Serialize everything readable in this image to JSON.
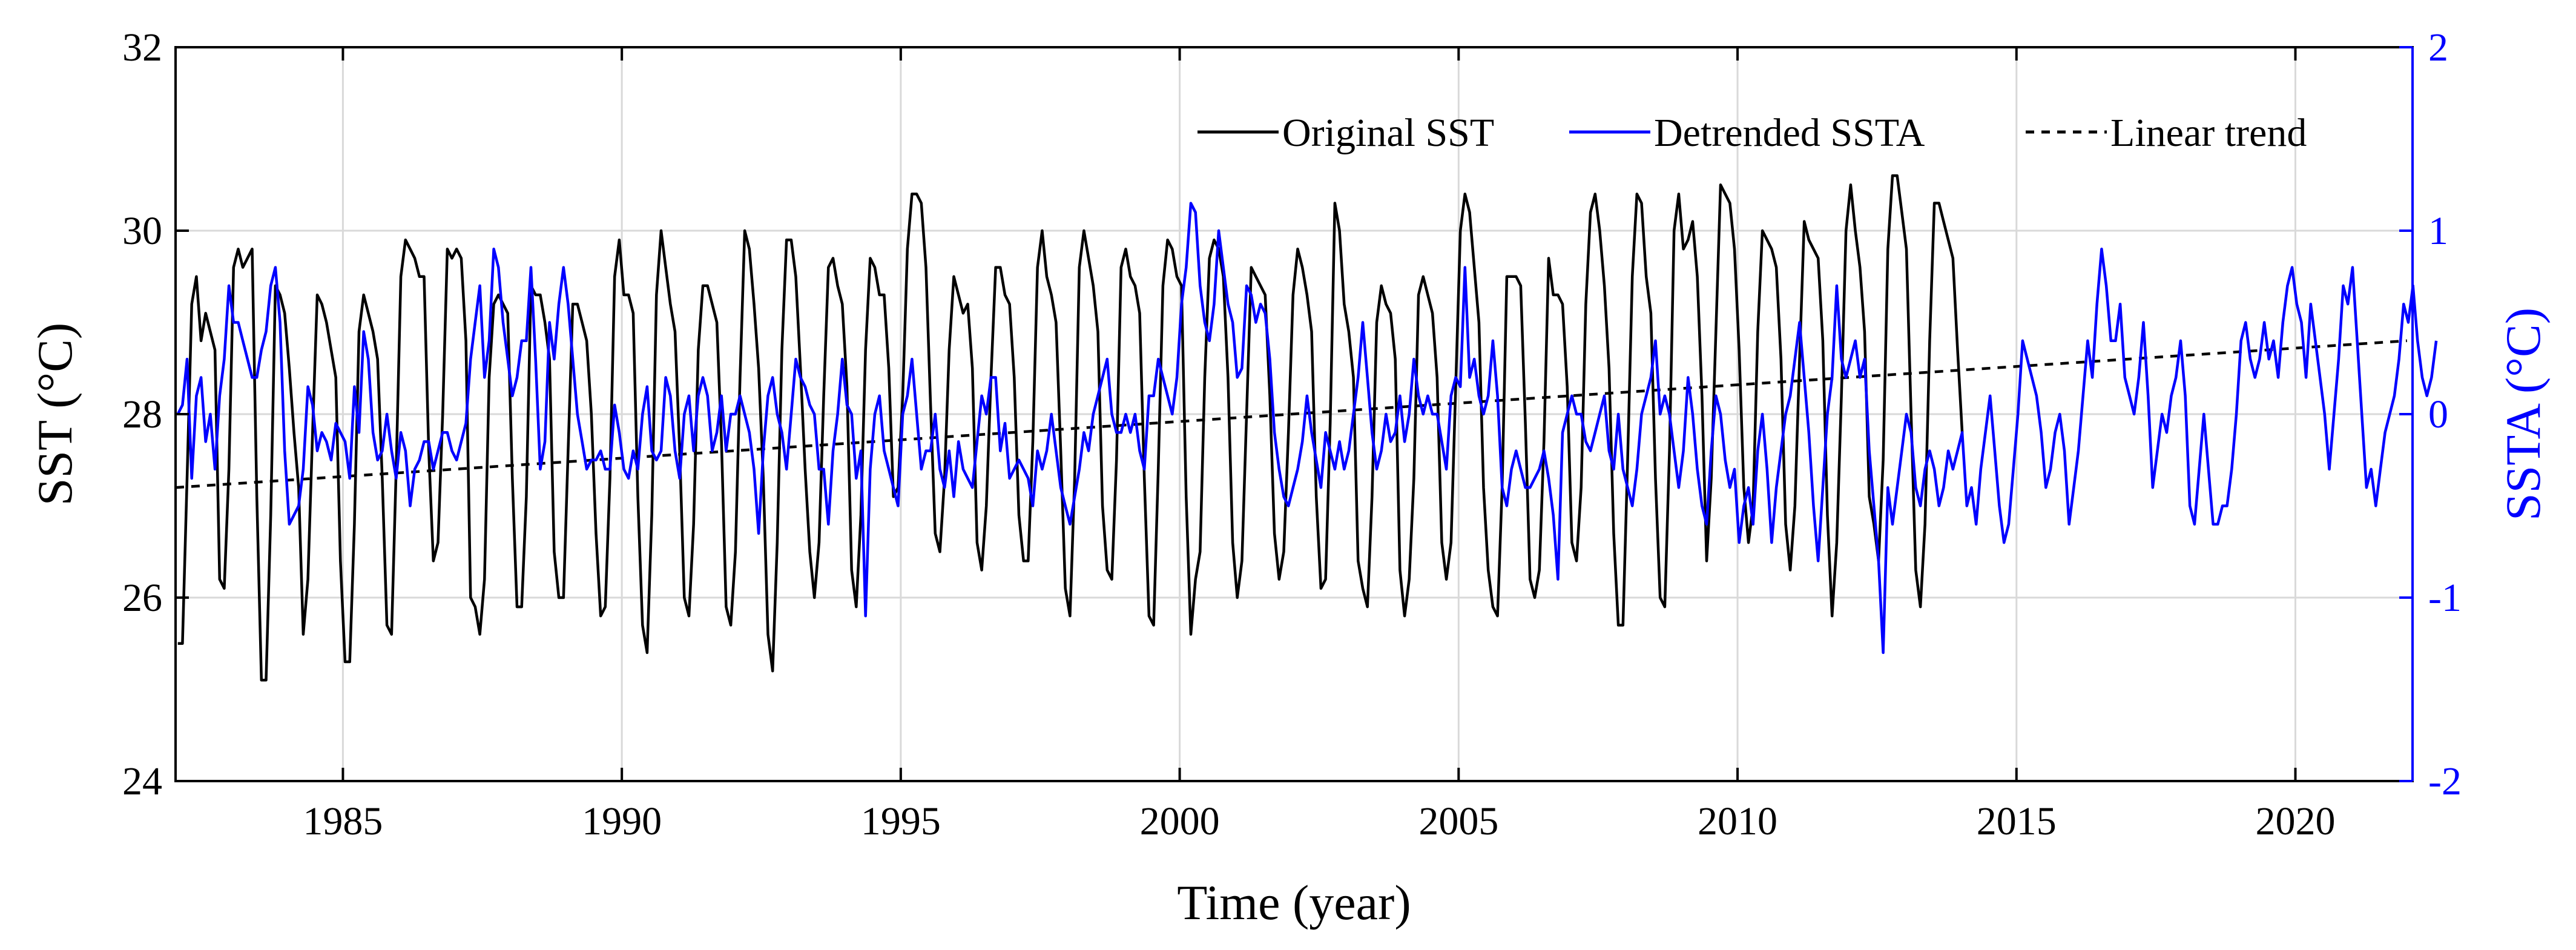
{
  "chart_data": {
    "type": "line",
    "title": "",
    "xlabel": "Time (year)",
    "ylabel_left": "SST (°C)",
    "ylabel_right": "SSTA (°C)",
    "xlim": [
      1982,
      2022.1
    ],
    "ylim_left": [
      24,
      32
    ],
    "ylim_right": [
      -2,
      2
    ],
    "x_ticks": [
      1985,
      1990,
      1995,
      2000,
      2005,
      2010,
      2015,
      2020
    ],
    "x_tick_labels": [
      "1985",
      "1990",
      "1995",
      "2000",
      "2005",
      "2010",
      "2015",
      "2020"
    ],
    "y_left_ticks": [
      24,
      26,
      28,
      30,
      32
    ],
    "y_left_tick_labels": [
      "24",
      "26",
      "28",
      "30",
      "32"
    ],
    "y_right_ticks": [
      -2,
      -1,
      0,
      1,
      2
    ],
    "y_right_tick_labels": [
      "-2",
      "-1",
      "0",
      "1",
      "2"
    ],
    "grid": true,
    "legend_position": "top-right",
    "colors": {
      "sst": "#000000",
      "ssta": "#0000ff",
      "trend": "#000000",
      "right_axis": "#0000ff",
      "grid": "#d9d9d9"
    },
    "series": [
      {
        "name": "Original SST",
        "axis": "left",
        "style": "solid",
        "color": "#000000",
        "start_year": 1982.04,
        "step": 0.0833,
        "values": [
          25.5,
          25.5,
          27.3,
          29.2,
          29.5,
          28.8,
          29.1,
          28.9,
          28.7,
          26.2,
          26.1,
          27.4,
          29.6,
          29.8,
          29.6,
          29.7,
          29.8,
          27.1,
          25.1,
          25.1,
          26.9,
          29.4,
          29.3,
          29.1,
          28.5,
          27.8,
          27.2,
          25.6,
          26.2,
          27.8,
          29.3,
          29.2,
          29.0,
          28.7,
          28.4,
          26.4,
          25.3,
          25.3,
          26.8,
          28.9,
          29.3,
          29.1,
          28.9,
          28.6,
          27.3,
          25.7,
          25.6,
          27.4,
          29.5,
          29.9,
          29.8,
          29.7,
          29.5,
          29.5,
          27.6,
          26.4,
          26.6,
          28.0,
          29.8,
          29.7,
          29.8,
          29.7,
          28.8,
          26.0,
          25.9,
          25.6,
          26.2,
          28.4,
          29.2,
          29.3,
          29.2,
          29.1,
          27.3,
          25.9,
          25.9,
          27.1,
          29.4,
          29.3,
          29.3,
          29.0,
          28.6,
          26.5,
          26.0,
          26.0,
          27.6,
          29.2,
          29.2,
          29.0,
          28.8,
          28.0,
          26.7,
          25.8,
          25.9,
          27.3,
          29.5,
          29.9,
          29.3,
          29.3,
          29.1,
          27.1,
          25.7,
          25.4,
          26.9,
          29.3,
          30.0,
          29.6,
          29.2,
          28.9,
          27.6,
          26.0,
          25.8,
          26.8,
          28.7,
          29.4,
          29.4,
          29.2,
          29.0,
          27.7,
          25.9,
          25.7,
          26.5,
          28.4,
          30.0,
          29.8,
          29.2,
          28.5,
          27.3,
          25.6,
          25.2,
          26.6,
          28.7,
          29.9,
          29.9,
          29.5,
          28.5,
          27.4,
          26.5,
          26.0,
          26.6,
          28.2,
          29.6,
          29.7,
          29.4,
          29.2,
          28.3,
          26.3,
          25.9,
          26.9,
          28.7,
          29.7,
          29.6,
          29.3,
          29.3,
          28.5,
          27.1,
          27.2,
          28.2,
          29.8,
          30.4,
          30.4,
          30.3,
          29.6,
          28.1,
          26.7,
          26.5,
          27.3,
          28.7,
          29.5,
          29.3,
          29.1,
          29.2,
          28.5,
          26.6,
          26.3,
          27.0,
          28.4,
          29.6,
          29.6,
          29.3,
          29.2,
          28.4,
          26.9,
          26.4,
          26.4,
          27.7,
          29.6,
          30.0,
          29.5,
          29.3,
          29.0,
          27.6,
          26.1,
          25.8,
          27.3,
          29.6,
          30.0,
          29.7,
          29.4,
          28.9,
          27.0,
          26.3,
          26.2,
          27.5,
          29.6,
          29.8,
          29.5,
          29.4,
          29.1,
          27.3,
          25.8,
          25.7,
          27.4,
          29.4,
          29.9,
          29.8,
          29.5,
          29.4,
          27.1,
          25.6,
          26.2,
          26.5,
          28.4,
          29.7,
          29.9,
          29.8,
          29.5,
          28.4,
          26.6,
          26.0,
          26.4,
          28.0,
          29.6,
          29.5,
          29.4,
          29.3,
          28.2,
          26.7,
          26.2,
          26.5,
          27.8,
          29.3,
          29.8,
          29.6,
          29.3,
          28.9,
          27.1,
          26.1,
          26.2,
          27.9,
          30.3,
          30.0,
          29.2,
          28.9,
          28.4,
          26.4,
          26.1,
          25.9,
          27.1,
          29.0,
          29.4,
          29.2,
          29.1,
          28.6,
          26.3,
          25.8,
          26.2,
          27.3,
          29.3,
          29.5,
          29.3,
          29.1,
          28.4,
          26.6,
          26.2,
          26.6,
          28.3,
          30.0,
          30.4,
          30.2,
          29.6,
          29.0,
          27.2,
          26.3,
          25.9,
          25.8,
          27.2,
          29.5,
          29.5,
          29.5,
          29.4,
          27.9,
          26.2,
          26.0,
          26.3,
          27.7,
          29.7,
          29.3,
          29.3,
          29.2,
          28.3,
          26.6,
          26.4,
          27.2,
          29.2,
          30.2,
          30.4,
          30.0,
          29.4,
          28.5,
          26.7,
          25.7,
          25.7,
          27.5,
          29.5,
          30.4,
          30.3,
          29.5,
          29.1,
          27.3,
          26.0,
          25.9,
          27.6,
          30.0,
          30.4,
          29.8,
          29.9,
          30.1,
          29.5,
          28.2,
          26.4,
          27.3,
          28.9,
          30.5,
          30.4,
          30.3,
          29.8,
          28.7,
          27.2,
          26.6,
          27.0,
          28.9,
          30.0,
          29.9,
          29.8,
          29.6,
          28.6,
          26.8,
          26.3,
          27.0,
          28.6,
          30.1,
          29.9,
          29.8,
          29.7,
          28.8,
          26.9,
          25.8,
          26.6,
          28.2,
          30.0,
          30.5,
          30.0,
          29.6,
          28.9,
          27.1,
          26.8,
          26.4,
          27.5,
          29.8,
          30.6,
          30.6,
          30.2,
          29.8,
          28.0,
          26.3,
          25.9,
          26.8,
          28.8,
          30.3,
          30.3,
          30.1,
          29.9,
          29.7,
          28.7,
          27.8
        ]
      },
      {
        "name": "Detrended SSTA",
        "axis": "right",
        "style": "solid",
        "color": "#0000ff",
        "start_year": 1982.04,
        "step": 0.0833,
        "values": [
          0.0,
          0.05,
          0.3,
          -0.35,
          0.1,
          0.2,
          -0.15,
          0.0,
          -0.3,
          0.1,
          0.3,
          0.7,
          0.5,
          0.5,
          0.4,
          0.3,
          0.2,
          0.2,
          0.35,
          0.45,
          0.7,
          0.8,
          0.5,
          -0.2,
          -0.6,
          -0.55,
          -0.5,
          -0.3,
          0.15,
          0.05,
          -0.2,
          -0.1,
          -0.15,
          -0.25,
          -0.05,
          -0.1,
          -0.15,
          -0.35,
          0.15,
          -0.1,
          0.45,
          0.3,
          -0.1,
          -0.25,
          -0.2,
          0.0,
          -0.2,
          -0.35,
          -0.1,
          -0.2,
          -0.5,
          -0.3,
          -0.25,
          -0.15,
          -0.15,
          -0.3,
          -0.2,
          -0.1,
          -0.1,
          -0.2,
          -0.25,
          -0.15,
          -0.05,
          0.3,
          0.5,
          0.7,
          0.2,
          0.4,
          0.9,
          0.8,
          0.5,
          0.3,
          0.1,
          0.2,
          0.4,
          0.4,
          0.8,
          0.3,
          -0.3,
          -0.15,
          0.5,
          0.3,
          0.6,
          0.8,
          0.6,
          0.3,
          0.0,
          -0.15,
          -0.3,
          -0.25,
          -0.25,
          -0.2,
          -0.3,
          -0.3,
          0.05,
          -0.1,
          -0.3,
          -0.35,
          -0.2,
          -0.3,
          0.0,
          0.15,
          -0.2,
          -0.25,
          -0.2,
          0.2,
          0.1,
          -0.2,
          -0.35,
          0.0,
          0.1,
          -0.2,
          0.1,
          0.2,
          0.1,
          -0.2,
          -0.1,
          0.1,
          -0.2,
          0.0,
          0.0,
          0.1,
          0.0,
          -0.1,
          -0.3,
          -0.65,
          -0.2,
          0.1,
          0.2,
          0.0,
          -0.1,
          -0.3,
          0.0,
          0.3,
          0.2,
          0.15,
          0.05,
          0.0,
          -0.3,
          -0.3,
          -0.6,
          -0.2,
          0.0,
          0.3,
          0.05,
          0.0,
          -0.35,
          -0.2,
          -1.1,
          -0.3,
          0.0,
          0.1,
          -0.2,
          -0.3,
          -0.4,
          -0.5,
          0.0,
          0.1,
          0.3,
          0.0,
          -0.3,
          -0.2,
          -0.2,
          0.0,
          -0.3,
          -0.4,
          -0.2,
          -0.45,
          -0.15,
          -0.3,
          -0.35,
          -0.4,
          -0.15,
          0.1,
          0.0,
          0.2,
          0.2,
          -0.2,
          -0.05,
          -0.35,
          -0.3,
          -0.25,
          -0.3,
          -0.35,
          -0.5,
          -0.2,
          -0.3,
          -0.2,
          0.0,
          -0.2,
          -0.4,
          -0.5,
          -0.6,
          -0.45,
          -0.3,
          -0.1,
          -0.2,
          0.0,
          0.1,
          0.2,
          0.3,
          0.0,
          -0.1,
          -0.1,
          0.0,
          -0.1,
          0.0,
          -0.2,
          -0.3,
          0.1,
          0.1,
          0.3,
          0.2,
          0.1,
          0.0,
          0.2,
          0.6,
          0.8,
          1.15,
          1.1,
          0.7,
          0.5,
          0.4,
          0.6,
          1.0,
          0.8,
          0.6,
          0.5,
          0.2,
          0.25,
          0.7,
          0.65,
          0.5,
          0.6,
          0.55,
          0.3,
          -0.1,
          -0.3,
          -0.45,
          -0.5,
          -0.4,
          -0.3,
          -0.15,
          0.1,
          -0.1,
          -0.25,
          -0.4,
          -0.1,
          -0.2,
          -0.3,
          -0.15,
          -0.3,
          -0.2,
          0.0,
          0.2,
          0.5,
          0.2,
          -0.1,
          -0.3,
          -0.2,
          0.0,
          -0.15,
          -0.1,
          0.1,
          -0.15,
          0.0,
          0.3,
          0.1,
          0.0,
          0.1,
          0.0,
          0.0,
          -0.15,
          -0.3,
          0.1,
          0.2,
          0.15,
          0.8,
          0.2,
          0.3,
          0.1,
          0.0,
          0.1,
          0.4,
          0.1,
          -0.4,
          -0.5,
          -0.3,
          -0.2,
          -0.3,
          -0.4,
          -0.4,
          -0.35,
          -0.3,
          -0.2,
          -0.35,
          -0.55,
          -0.9,
          -0.1,
          0.0,
          0.1,
          0.0,
          0.0,
          -0.15,
          -0.2,
          -0.1,
          0.0,
          0.1,
          -0.2,
          -0.3,
          0.0,
          -0.3,
          -0.4,
          -0.5,
          -0.3,
          0.0,
          0.1,
          0.2,
          0.4,
          0.0,
          0.1,
          0.0,
          -0.2,
          -0.4,
          -0.2,
          0.2,
          0.0,
          -0.3,
          -0.5,
          -0.6,
          -0.2,
          0.1,
          0.0,
          -0.25,
          -0.4,
          -0.3,
          -0.7,
          -0.5,
          -0.4,
          -0.6,
          -0.2,
          0.0,
          -0.3,
          -0.7,
          -0.4,
          -0.2,
          0.0,
          0.1,
          0.3,
          0.5,
          0.2,
          -0.1,
          -0.5,
          -0.8,
          -0.4,
          0.0,
          0.2,
          0.7,
          0.3,
          0.2,
          0.3,
          0.4,
          0.2,
          0.3,
          -0.2,
          -0.5,
          -0.8,
          -1.3,
          -0.4,
          -0.6,
          -0.4,
          -0.2,
          0.0,
          -0.1,
          -0.4,
          -0.5,
          -0.3,
          -0.2,
          -0.3,
          -0.5,
          -0.4,
          -0.2,
          -0.3,
          -0.2,
          -0.1,
          -0.5,
          -0.4,
          -0.6,
          -0.3,
          -0.1,
          0.1,
          -0.2,
          -0.5,
          -0.7,
          -0.6,
          -0.3,
          0.0,
          0.4,
          0.3,
          0.2,
          0.1,
          -0.1,
          -0.4,
          -0.3,
          -0.1,
          0.0,
          -0.2,
          -0.6,
          -0.4,
          -0.2,
          0.1,
          0.4,
          0.2,
          0.6,
          0.9,
          0.7,
          0.4,
          0.4,
          0.6,
          0.2,
          0.1,
          0.0,
          0.2,
          0.5,
          0.1,
          -0.4,
          -0.2,
          0.0,
          -0.1,
          0.1,
          0.2,
          0.4,
          0.1,
          -0.5,
          -0.6,
          -0.3,
          0.0,
          -0.3,
          -0.6,
          -0.6,
          -0.5,
          -0.5,
          -0.3,
          0.0,
          0.4,
          0.5,
          0.3,
          0.2,
          0.3,
          0.5,
          0.3,
          0.4,
          0.2,
          0.5,
          0.7,
          0.8,
          0.6,
          0.5,
          0.2,
          0.6,
          0.4,
          0.2,
          0.0,
          -0.3,
          0.0,
          0.3,
          0.7,
          0.6,
          0.8,
          0.4,
          0.0,
          -0.4,
          -0.3,
          -0.5,
          -0.3,
          -0.1,
          0.0,
          0.1,
          0.3,
          0.6,
          0.5,
          0.7,
          0.4,
          0.2,
          0.1,
          0.2,
          0.4
        ]
      },
      {
        "name": "Linear trend",
        "axis": "left",
        "style": "dashed",
        "color": "#000000",
        "x": [
          1982.0,
          2022.0
        ],
        "y": [
          27.2,
          28.8
        ]
      }
    ],
    "legend": {
      "entries": [
        {
          "label": "Original SST",
          "style": "solid",
          "color": "#000000"
        },
        {
          "label": "Detrended SSTA",
          "style": "solid",
          "color": "#0000ff"
        },
        {
          "label": "Linear trend",
          "style": "dashed",
          "color": "#000000"
        }
      ]
    }
  }
}
